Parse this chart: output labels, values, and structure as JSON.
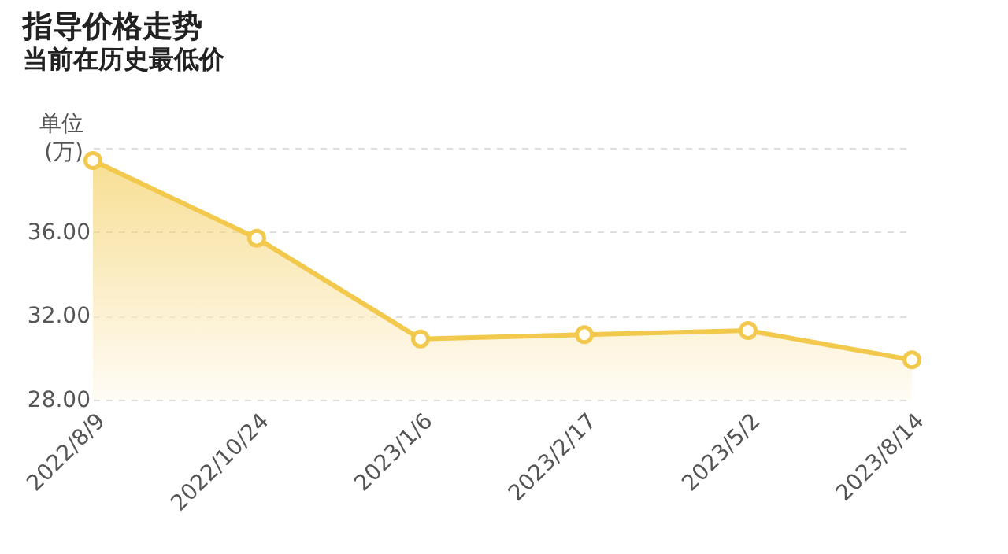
{
  "chart_data": {
    "type": "area",
    "title": "指导价格走势",
    "subtitle": "当前在历史最低价",
    "ylabel": "单位\n(万)",
    "categories": [
      "2022/8/9",
      "2022/10/24",
      "2023/1/6",
      "2023/2/17",
      "2023/5/2",
      "2023/8/14"
    ],
    "series": [
      {
        "color": "#f2c94c",
        "values": [
          39.4,
          35.7,
          30.9,
          31.1,
          31.3,
          29.9
        ]
      }
    ],
    "ylim": [
      28,
      40
    ],
    "yticks": [
      {
        "value": 28,
        "label": "28.00"
      },
      {
        "value": 32,
        "label": "32.00"
      },
      {
        "value": 36,
        "label": "36.00"
      },
      {
        "value": 40,
        "label": null
      }
    ],
    "grid": "y",
    "marker": "circle",
    "line_style": "solid"
  }
}
